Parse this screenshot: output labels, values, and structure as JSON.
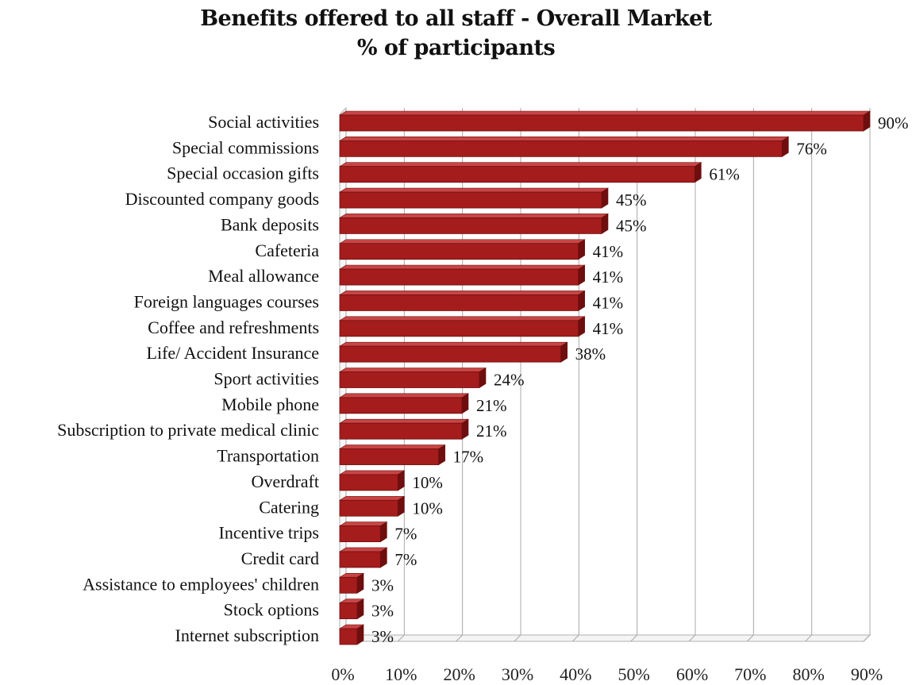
{
  "chart_data": {
    "type": "bar",
    "orientation": "horizontal",
    "title": "Benefits offered to all staff - Overall Market",
    "subtitle": "% of participants",
    "categories": [
      "Social activities",
      "Special commissions",
      "Special occasion gifts",
      "Discounted company goods",
      "Bank deposits",
      "Cafeteria",
      "Meal allowance",
      "Foreign languages courses",
      "Coffee and refreshments",
      "Life/ Accident Insurance",
      "Sport activities",
      "Mobile phone",
      "Subscription to private medical clinic",
      "Transportation",
      "Overdraft",
      "Catering",
      "Incentive trips",
      "Credit card",
      "Assistance to employees' children",
      "Stock options",
      "Internet subscription"
    ],
    "values": [
      90,
      76,
      61,
      45,
      45,
      41,
      41,
      41,
      41,
      38,
      24,
      21,
      21,
      17,
      10,
      10,
      7,
      7,
      3,
      3,
      3
    ],
    "data_labels": [
      "90%",
      "76%",
      "61%",
      "45%",
      "45%",
      "41%",
      "41%",
      "41%",
      "41%",
      "38%",
      "24%",
      "21%",
      "21%",
      "17%",
      "10%",
      "10%",
      "7%",
      "7%",
      "3%",
      "3%",
      "3%"
    ],
    "x_ticks": [
      "0%",
      "10%",
      "20%",
      "30%",
      "40%",
      "50%",
      "60%",
      "70%",
      "80%",
      "90%"
    ],
    "xlim": [
      0,
      90
    ],
    "xlabel": "",
    "ylabel": "",
    "grid": true,
    "bar_color": "#a51c1c",
    "bar_edge_color": "#6e0e0e"
  }
}
